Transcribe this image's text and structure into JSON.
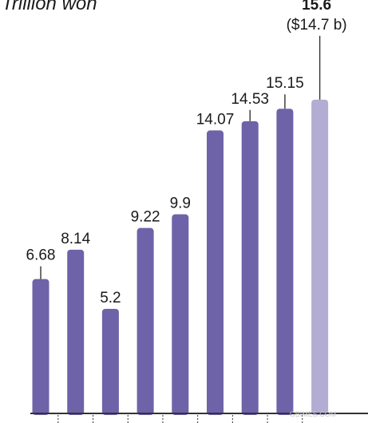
{
  "chart_data": {
    "type": "bar",
    "unit_label": "Trillion won",
    "values": [
      6.68,
      8.14,
      5.2,
      9.22,
      9.9,
      14.07,
      14.53,
      15.15,
      15.6
    ],
    "value_labels": [
      "6.68",
      "8.14",
      "5.2",
      "9.22",
      "9.9",
      "14.07",
      "14.53",
      "15.15",
      "15.6"
    ],
    "last_value_sublabel": "($14.7 b)",
    "highlight_index": 8,
    "colors": {
      "bar": "#6e63a9",
      "highlight_bar": "#b3add4",
      "leader_line": "#333333",
      "axis": "#333333"
    },
    "watermark": "GBIMES.COM"
  }
}
